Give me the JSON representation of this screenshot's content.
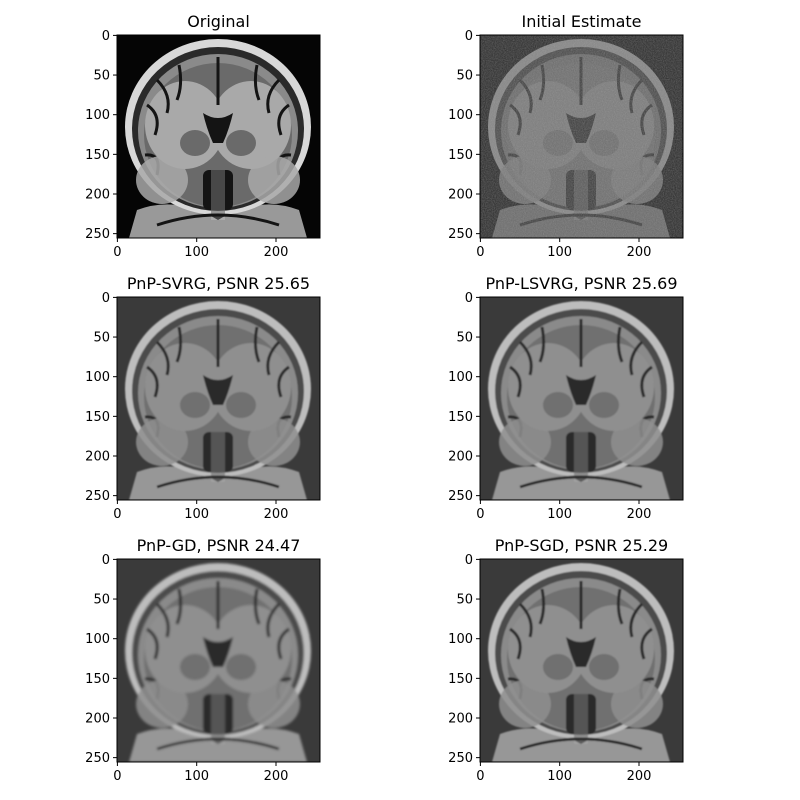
{
  "figure": {
    "panels": [
      {
        "id": "original",
        "title": "Original",
        "variant": "original"
      },
      {
        "id": "initial-estimate",
        "title": "Initial Estimate",
        "variant": "noisy"
      },
      {
        "id": "pnp-svrg",
        "title": "PnP-SVRG, PSNR 25.65",
        "variant": "recon"
      },
      {
        "id": "pnp-lsvrg",
        "title": "PnP-LSVRG, PSNR 25.69",
        "variant": "recon"
      },
      {
        "id": "pnp-gd",
        "title": "PnP-GD, PSNR 24.47",
        "variant": "recon-blur"
      },
      {
        "id": "pnp-sgd",
        "title": "PnP-SGD, PSNR 25.29",
        "variant": "recon"
      }
    ],
    "x_ticks": [
      "0",
      "100",
      "200"
    ],
    "y_ticks": [
      "0",
      "50",
      "100",
      "150",
      "200",
      "250"
    ],
    "colormap": "gray"
  }
}
